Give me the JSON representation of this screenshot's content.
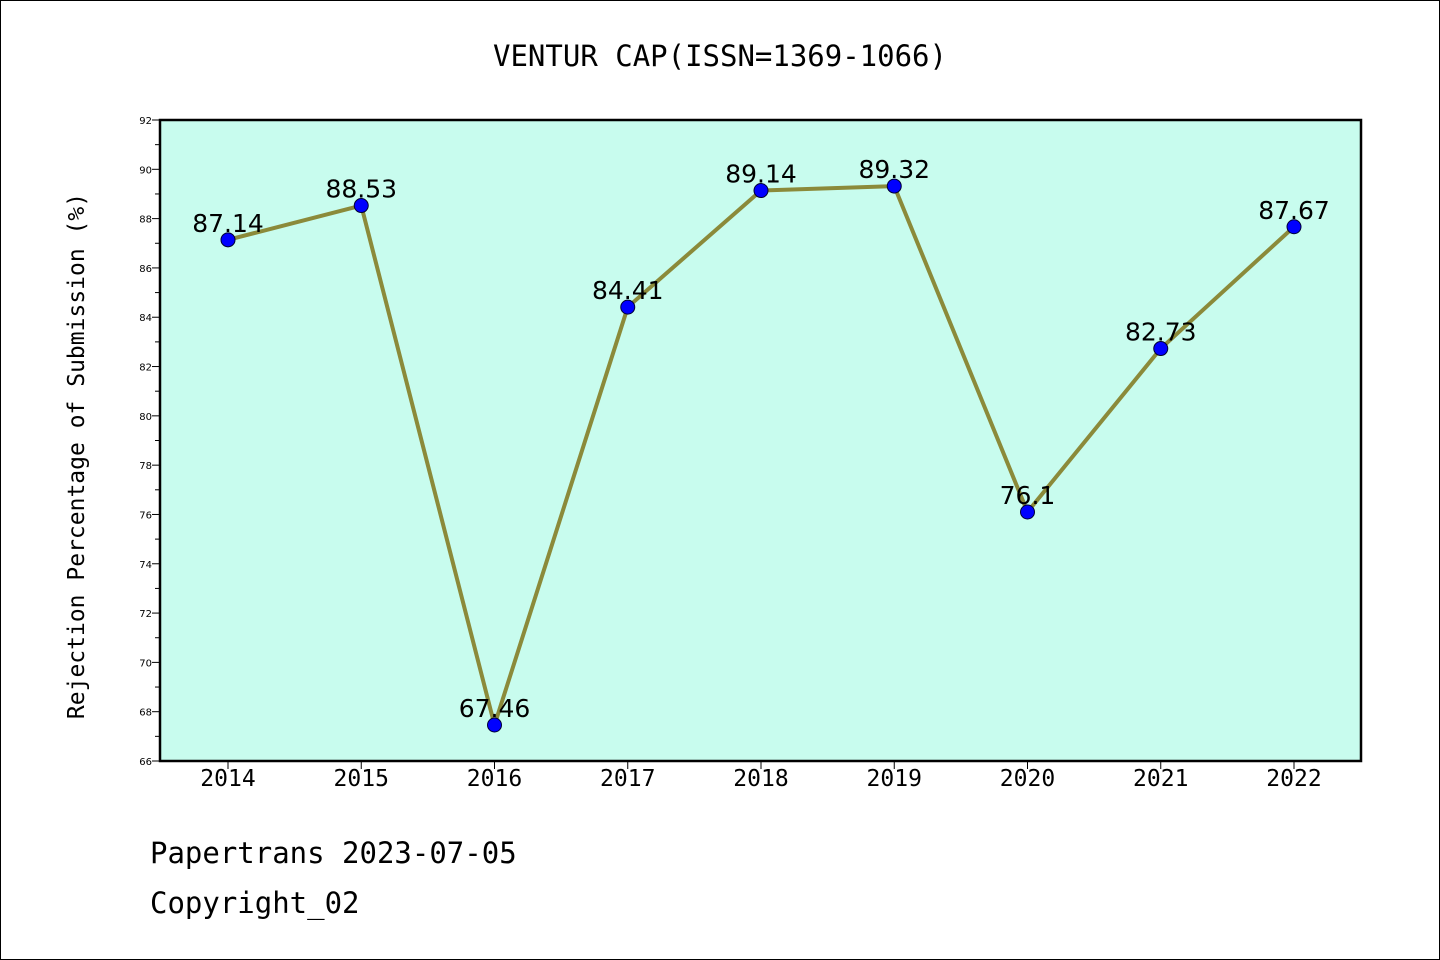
{
  "chart_data": {
    "type": "line",
    "title": "VENTUR CAP(ISSN=1369-1066)",
    "xlabel": "",
    "ylabel": "Rejection Percentage of Submission (%)",
    "categories": [
      "2014",
      "2015",
      "2016",
      "2017",
      "2018",
      "2019",
      "2020",
      "2021",
      "2022"
    ],
    "series": [
      {
        "values": [
          87.14,
          88.53,
          67.46,
          84.41,
          89.14,
          89.32,
          76.1,
          82.73,
          87.67
        ],
        "labels": [
          "87.14",
          "88.53",
          "67.46",
          "84.41",
          "89.14",
          "89.32",
          "76.1",
          "82.73",
          "87.67"
        ],
        "line_color": "#8b8a3a",
        "marker_color": "#0000ff"
      }
    ],
    "ylim": [
      66,
      92
    ],
    "yticks": [
      66,
      68,
      70,
      72,
      74,
      76,
      78,
      80,
      82,
      84,
      86,
      88,
      90,
      92
    ],
    "plot_background": "#c8fcee",
    "grid": false
  },
  "footer": {
    "line1": "Papertrans 2023-07-05",
    "line2": "Copyright_02"
  }
}
